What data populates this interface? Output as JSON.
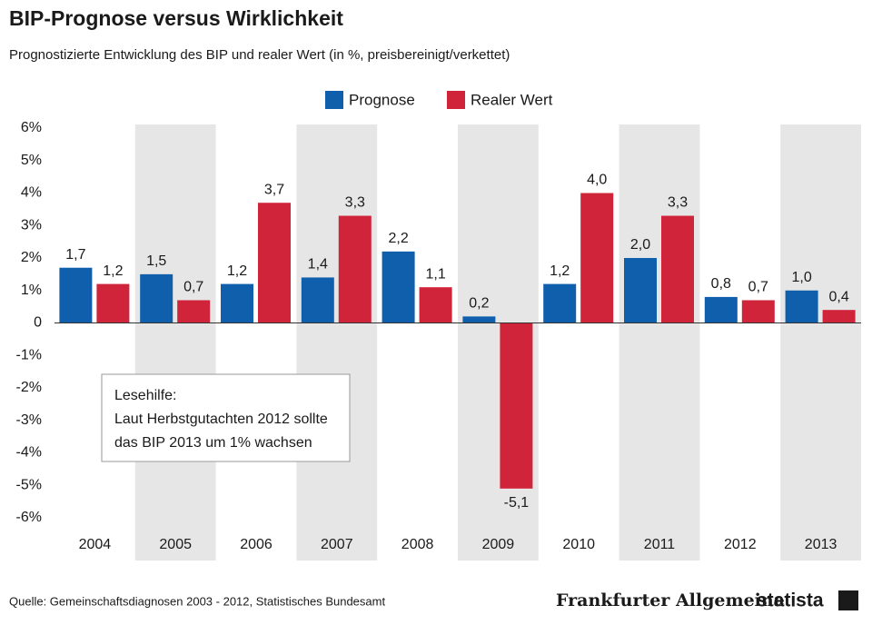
{
  "chart_data": {
    "type": "bar",
    "title": "BIP-Prognose versus Wirklichkeit",
    "subtitle": "Prognostizierte Entwicklung des BIP und realer Wert (in %, preisbereinigt/verkettet)",
    "categories": [
      "2004",
      "2005",
      "2006",
      "2007",
      "2008",
      "2009",
      "2010",
      "2011",
      "2012",
      "2013"
    ],
    "series": [
      {
        "name": "Prognose",
        "color": "#0f5fac",
        "values": [
          1.7,
          1.5,
          1.2,
          1.4,
          2.2,
          0.2,
          1.2,
          2.0,
          0.8,
          1.0
        ],
        "value_labels": [
          "1,7",
          "1,5",
          "1,2",
          "1,4",
          "2,2",
          "0,2",
          "1,2",
          "2,0",
          "0,8",
          "1,0"
        ]
      },
      {
        "name": "Realer Wert",
        "color": "#d0243a",
        "values": [
          1.2,
          0.7,
          3.7,
          3.3,
          1.1,
          -5.1,
          4.0,
          3.3,
          0.7,
          0.4
        ],
        "value_labels": [
          "1,2",
          "0,7",
          "3,7",
          "3,3",
          "1,1",
          "-5,1",
          "4,0",
          "3,3",
          "0,7",
          "0,4"
        ]
      }
    ],
    "ylim": [
      -6,
      6
    ],
    "yticks": [
      {
        "value": -6,
        "label": "-6%"
      },
      {
        "value": -5,
        "label": "-5%"
      },
      {
        "value": -4,
        "label": "-4%"
      },
      {
        "value": -3,
        "label": "-3%"
      },
      {
        "value": -2,
        "label": "-2%"
      },
      {
        "value": -1,
        "label": "-1%"
      },
      0,
      {
        "value": 1,
        "label": "1%"
      },
      {
        "value": 2,
        "label": "2%"
      },
      {
        "value": 3,
        "label": "3%"
      },
      {
        "value": 4,
        "label": "4%"
      },
      {
        "value": 5,
        "label": "5%"
      },
      {
        "value": 6,
        "label": "6%"
      }
    ],
    "annotation": [
      "Lesehilfe:",
      "Laut Herbstgutachten 2012 sollte",
      "das BIP 2013 um 1% wachsen"
    ],
    "source": "Quelle: Gemeinschaftsdiagnosen 2003 - 2012, Statistisches Bundesamt",
    "branding": [
      "Frankfurter Allgemeine",
      "statista"
    ]
  }
}
